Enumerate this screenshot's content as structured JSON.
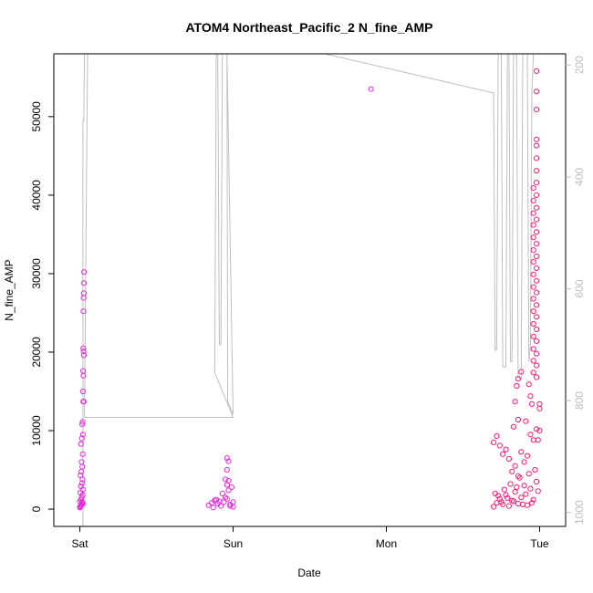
{
  "chart_data": {
    "type": "scatter",
    "title": "ATOM4 Northeast_Pacific_2 N_fine_AMP",
    "xlabel": "Date",
    "ylabel": "N_fine_AMP",
    "x_tick_labels": [
      "Sat",
      "Sun",
      "Mon",
      "Tue"
    ],
    "x_tick_positions_days": [
      0,
      1,
      2,
      3
    ],
    "xlim_days": [
      -0.17,
      3.17
    ],
    "ylim": [
      -2200,
      58000
    ],
    "y_ticks": [
      0,
      10000,
      20000,
      30000,
      40000,
      50000
    ],
    "y2_ticks": [
      200,
      400,
      600,
      800,
      1000
    ],
    "y2lim": [
      1025,
      180
    ],
    "y2_reversed": true,
    "colors": {
      "points_group_a": "#e62bd9",
      "points_group_b": "#ff1a75",
      "secondary_line": "#bebebe",
      "axis": "#000000",
      "secondary_axis": "#bebebe"
    },
    "series": [
      {
        "type": "points",
        "color": "#e62bd9",
        "data": [
          [
            0.0,
            200
          ],
          [
            0.005,
            400
          ],
          [
            0.01,
            600
          ],
          [
            0.015,
            800
          ],
          [
            0.0,
            1000
          ],
          [
            0.008,
            1200
          ],
          [
            0.012,
            1500
          ],
          [
            0.018,
            1800
          ],
          [
            0.003,
            2100
          ],
          [
            0.02,
            2500
          ],
          [
            0.006,
            2900
          ],
          [
            0.014,
            3300
          ],
          [
            0.017,
            3800
          ],
          [
            0.004,
            4300
          ],
          [
            0.01,
            4800
          ],
          [
            0.016,
            5400
          ],
          [
            0.011,
            6000
          ],
          [
            0.019,
            7000
          ],
          [
            0.007,
            8300
          ],
          [
            0.013,
            9000
          ],
          [
            0.02,
            9500
          ],
          [
            0.015,
            10800
          ],
          [
            0.018,
            11100
          ],
          [
            0.022,
            13700
          ],
          [
            0.025,
            13700
          ],
          [
            0.02,
            15000
          ],
          [
            0.023,
            17000
          ],
          [
            0.021,
            17600
          ],
          [
            0.026,
            19600
          ],
          [
            0.024,
            20100
          ],
          [
            0.022,
            20500
          ],
          [
            0.023,
            25200
          ],
          [
            0.024,
            26900
          ],
          [
            0.025,
            27500
          ],
          [
            0.026,
            28800
          ],
          [
            0.027,
            30200
          ],
          [
            0.0,
            300
          ],
          [
            0.01,
            500
          ],
          [
            0.02,
            700
          ],
          [
            0.015,
            900
          ],
          [
            0.84,
            500
          ],
          [
            0.86,
            800
          ],
          [
            0.88,
            1100
          ],
          [
            0.9,
            700
          ],
          [
            0.92,
            400
          ],
          [
            0.94,
            900
          ],
          [
            0.96,
            1300
          ],
          [
            0.98,
            600
          ],
          [
            1.0,
            300
          ],
          [
            0.87,
            200
          ],
          [
            0.91,
            1000
          ],
          [
            0.95,
            1500
          ],
          [
            0.93,
            2000
          ],
          [
            0.97,
            2400
          ],
          [
            0.99,
            2800
          ],
          [
            0.96,
            3100
          ],
          [
            0.97,
            3600
          ],
          [
            0.95,
            3800
          ],
          [
            0.96,
            5000
          ],
          [
            0.97,
            6100
          ],
          [
            0.96,
            6500
          ],
          [
            0.98,
            400
          ],
          [
            0.89,
            1200
          ],
          [
            1.0,
            900
          ],
          [
            1.9,
            53500
          ]
        ]
      },
      {
        "type": "points",
        "color": "#ff1a75",
        "data": [
          [
            2.7,
            300
          ],
          [
            2.72,
            800
          ],
          [
            2.74,
            1300
          ],
          [
            2.76,
            600
          ],
          [
            2.78,
            1800
          ],
          [
            2.8,
            400
          ],
          [
            2.82,
            1100
          ],
          [
            2.84,
            2200
          ],
          [
            2.86,
            700
          ],
          [
            2.88,
            1500
          ],
          [
            2.9,
            3000
          ],
          [
            2.92,
            500
          ],
          [
            2.94,
            2600
          ],
          [
            2.96,
            1200
          ],
          [
            2.98,
            3500
          ],
          [
            2.71,
            2000
          ],
          [
            2.73,
            1700
          ],
          [
            2.75,
            900
          ],
          [
            2.77,
            2500
          ],
          [
            2.79,
            1400
          ],
          [
            2.81,
            3200
          ],
          [
            2.83,
            1000
          ],
          [
            2.85,
            2800
          ],
          [
            2.87,
            4000
          ],
          [
            2.89,
            600
          ],
          [
            2.91,
            1900
          ],
          [
            2.93,
            4500
          ],
          [
            2.95,
            800
          ],
          [
            2.97,
            5000
          ],
          [
            2.99,
            2300
          ],
          [
            2.7,
            8500
          ],
          [
            2.72,
            9300
          ],
          [
            2.74,
            8100
          ],
          [
            2.76,
            7000
          ],
          [
            2.78,
            7600
          ],
          [
            2.8,
            6400
          ],
          [
            2.82,
            4800
          ],
          [
            2.84,
            5500
          ],
          [
            2.86,
            4200
          ],
          [
            2.88,
            7300
          ],
          [
            2.9,
            6000
          ],
          [
            2.92,
            6800
          ],
          [
            2.94,
            9500
          ],
          [
            2.96,
            8800
          ],
          [
            2.98,
            10200
          ],
          [
            2.83,
            10500
          ],
          [
            2.86,
            11400
          ],
          [
            2.84,
            13700
          ],
          [
            2.85,
            15700
          ],
          [
            2.86,
            16600
          ],
          [
            2.88,
            17500
          ],
          [
            2.91,
            11200
          ],
          [
            2.93,
            15900
          ],
          [
            2.94,
            14400
          ],
          [
            2.95,
            13400
          ],
          [
            3.0,
            12800
          ],
          [
            3.0,
            13400
          ],
          [
            3.0,
            10000
          ],
          [
            2.99,
            8800
          ],
          [
            2.96,
            17400
          ],
          [
            2.96,
            18900
          ],
          [
            2.96,
            20400
          ],
          [
            2.96,
            22000
          ],
          [
            2.96,
            23600
          ],
          [
            2.96,
            25200
          ],
          [
            2.96,
            26800
          ],
          [
            2.96,
            28300
          ],
          [
            2.96,
            29900
          ],
          [
            2.96,
            31500
          ],
          [
            2.96,
            33000
          ],
          [
            2.96,
            34600
          ],
          [
            2.96,
            36200
          ],
          [
            2.96,
            37700
          ],
          [
            2.96,
            39300
          ],
          [
            2.96,
            40900
          ],
          [
            2.98,
            16800
          ],
          [
            2.98,
            18300
          ],
          [
            2.98,
            19800
          ],
          [
            2.98,
            21400
          ],
          [
            2.98,
            22900
          ],
          [
            2.98,
            24500
          ],
          [
            2.98,
            26000
          ],
          [
            2.98,
            27600
          ],
          [
            2.98,
            29100
          ],
          [
            2.98,
            30700
          ],
          [
            2.98,
            32200
          ],
          [
            2.98,
            33800
          ],
          [
            2.98,
            35300
          ],
          [
            2.98,
            36900
          ],
          [
            2.98,
            38400
          ],
          [
            2.98,
            40000
          ],
          [
            2.98,
            41600
          ],
          [
            2.98,
            43100
          ],
          [
            2.98,
            44700
          ],
          [
            2.98,
            46300
          ],
          [
            2.98,
            47100
          ],
          [
            2.98,
            50900
          ],
          [
            2.98,
            53200
          ],
          [
            2.98,
            55800
          ]
        ]
      },
      {
        "type": "line",
        "name": "secondary",
        "color": "#bebebe",
        "data": [
          [
            0.02,
            1025
          ],
          [
            0.02,
            300
          ],
          [
            0.025,
            300
          ],
          [
            0.03,
            180
          ],
          [
            0.05,
            180
          ],
          [
            0.03,
            830
          ],
          [
            1.0,
            830
          ],
          [
            0.88,
            750
          ],
          [
            0.89,
            180
          ],
          [
            0.9,
            180
          ],
          [
            0.91,
            700
          ],
          [
            0.92,
            700
          ],
          [
            0.93,
            180
          ],
          [
            0.96,
            180
          ],
          [
            0.965,
            800
          ],
          [
            0.97,
            805
          ],
          [
            1.0,
            825
          ],
          [
            0.96,
            180
          ],
          [
            1.6,
            180
          ],
          [
            2.7,
            250
          ],
          [
            2.71,
            710
          ],
          [
            2.72,
            710
          ],
          [
            2.73,
            180
          ],
          [
            2.75,
            180
          ],
          [
            2.76,
            740
          ],
          [
            2.78,
            740
          ],
          [
            2.79,
            180
          ],
          [
            2.8,
            180
          ],
          [
            2.81,
            730
          ],
          [
            2.82,
            730
          ],
          [
            2.83,
            180
          ],
          [
            2.85,
            180
          ],
          [
            2.86,
            760
          ],
          [
            2.88,
            760
          ],
          [
            2.89,
            180
          ],
          [
            2.92,
            180
          ],
          [
            2.93,
            730
          ],
          [
            2.94,
            700
          ],
          [
            2.95,
            250
          ],
          [
            2.96,
            180
          ],
          [
            2.97,
            180
          ]
        ]
      }
    ],
    "grid": false,
    "legend": "none"
  }
}
